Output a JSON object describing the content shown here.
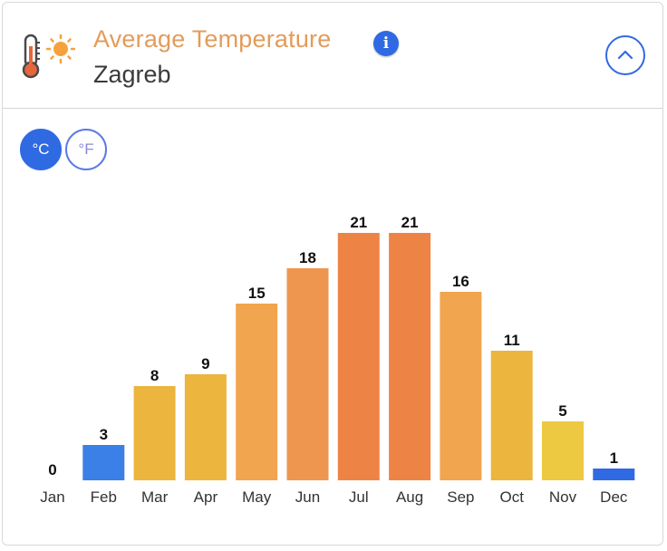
{
  "header": {
    "title": "Average Temperature",
    "city": "Zagreb",
    "info_glyph": "i",
    "icons": [
      "thermometer-sun-icon",
      "info-icon",
      "chevron-up-icon"
    ]
  },
  "units": {
    "celsius_label": "°C",
    "fahrenheit_label": "°F",
    "selected": "°C"
  },
  "colors": {
    "accent": "#2f6ae3",
    "title": "#e39c5a",
    "cold": "#3a80e6",
    "yellow": "#ecc941",
    "gold": "#ebb53e",
    "light_orange": "#f0a54e",
    "orange": "#ee9650",
    "dark_orange": "#ee8346"
  },
  "chart_data": {
    "type": "bar",
    "categories": [
      "Jan",
      "Feb",
      "Mar",
      "Apr",
      "May",
      "Jun",
      "Jul",
      "Aug",
      "Sep",
      "Oct",
      "Nov",
      "Dec"
    ],
    "values": [
      0,
      3,
      8,
      9,
      15,
      18,
      21,
      21,
      16,
      11,
      5,
      1
    ],
    "bar_colors": [
      "#3a80e6",
      "#3a80e6",
      "#ebb53e",
      "#ebb53e",
      "#f0a54e",
      "#ee9650",
      "#ee8346",
      "#ee8346",
      "#f0a54e",
      "#ebb53e",
      "#ecc941",
      "#2f6ae3"
    ],
    "ylim": [
      0,
      21
    ],
    "grid": false,
    "legend": "none",
    "data_labels": true
  }
}
